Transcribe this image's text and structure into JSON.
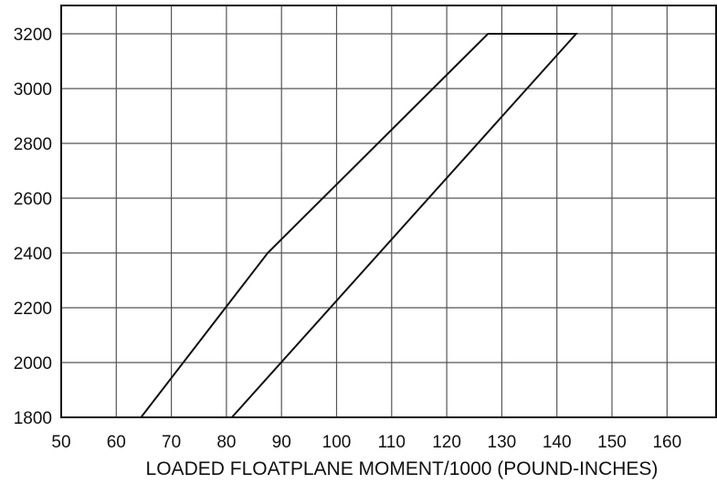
{
  "chart_data": {
    "type": "line",
    "title": "",
    "xlabel": "LOADED FLOATPLANE MOMENT/1000 (POUND-INCHES)",
    "ylabel": "",
    "xlim": [
      50,
      170
    ],
    "ylim": [
      1800,
      3300
    ],
    "x_ticks": [
      "50",
      "60",
      "70",
      "80",
      "90",
      "100",
      "110",
      "120",
      "130",
      "140",
      "150",
      "160"
    ],
    "y_ticks": [
      "1800",
      "2000",
      "2200",
      "2400",
      "2600",
      "2800",
      "3000",
      "3200"
    ],
    "grid": true,
    "series": [
      {
        "values": [
          {
            "x": 64.5,
            "y": 1800
          },
          {
            "x": 87.5,
            "y": 2400
          },
          {
            "x": 127.5,
            "y": 3200
          },
          {
            "x": 143.5,
            "y": 3200
          },
          {
            "x": 81,
            "y": 1800
          }
        ]
      }
    ]
  }
}
